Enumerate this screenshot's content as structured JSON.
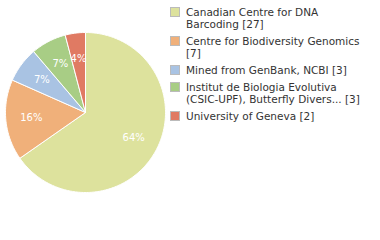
{
  "chart_data": {
    "type": "pie",
    "categories": [
      "Canadian Centre for DNA Barcoding [27]",
      "Centre for Biodiversity Genomics [7]",
      "Mined from GenBank, NCBI [3]",
      "Institut de Biologia Evolutiva (CSIC-UPF), Butterfly Divers... [3]",
      "University of Geneva [2]"
    ],
    "values": [
      64,
      16,
      7,
      7,
      4
    ],
    "value_labels": [
      "64%",
      "16%",
      "7%",
      "7%",
      "4%"
    ],
    "colors": [
      "#dde29d",
      "#f0b07a",
      "#a9c3e3",
      "#a8cd85",
      "#e07a63"
    ],
    "data_labels": true,
    "legend": "right"
  }
}
